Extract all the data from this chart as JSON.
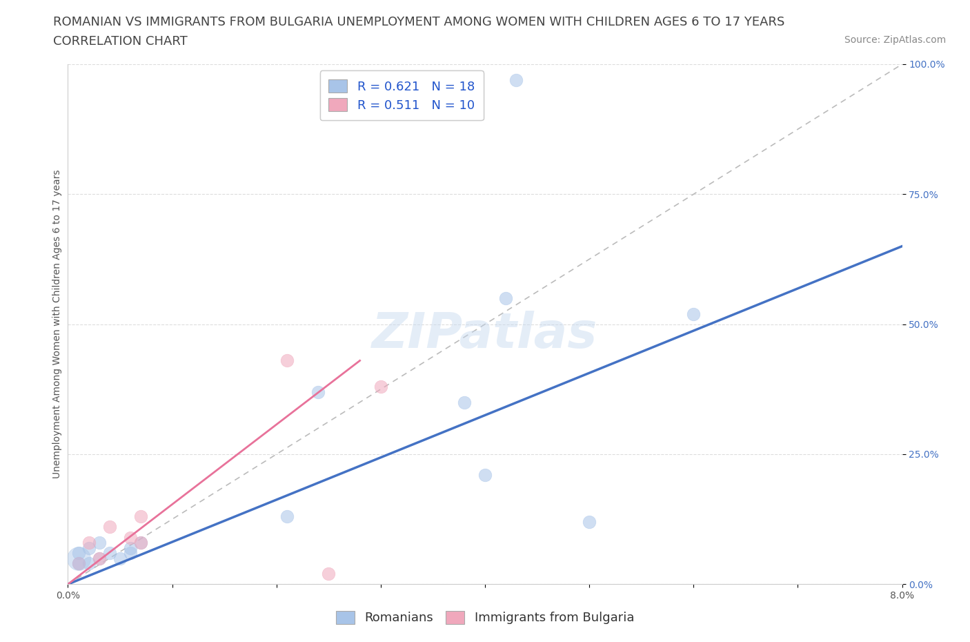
{
  "title_line1": "ROMANIAN VS IMMIGRANTS FROM BULGARIA UNEMPLOYMENT AMONG WOMEN WITH CHILDREN AGES 6 TO 17 YEARS",
  "title_line2": "CORRELATION CHART",
  "source_text": "Source: ZipAtlas.com",
  "ylabel_label": "Unemployment Among Women with Children Ages 6 to 17 years",
  "xmin": 0.0,
  "xmax": 0.08,
  "ymin": 0.0,
  "ymax": 1.0,
  "x_ticks": [
    0.0,
    0.01,
    0.02,
    0.03,
    0.04,
    0.05,
    0.06,
    0.07,
    0.08
  ],
  "x_tick_labels": [
    "0.0%",
    "",
    "",
    "",
    "",
    "",
    "",
    "",
    "8.0%"
  ],
  "y_ticks": [
    0.0,
    0.25,
    0.5,
    0.75,
    1.0
  ],
  "y_tick_labels": [
    "0.0%",
    "25.0%",
    "50.0%",
    "75.0%",
    "100.0%"
  ],
  "romanian_color": "#a8c4e8",
  "bulgarian_color": "#f0a8bc",
  "romanian_scatter_x": [
    0.001,
    0.001,
    0.002,
    0.002,
    0.003,
    0.003,
    0.004,
    0.005,
    0.006,
    0.006,
    0.007,
    0.021,
    0.024,
    0.038,
    0.04,
    0.042,
    0.05,
    0.06
  ],
  "romanian_scatter_y": [
    0.04,
    0.06,
    0.04,
    0.07,
    0.05,
    0.08,
    0.06,
    0.05,
    0.06,
    0.07,
    0.08,
    0.13,
    0.37,
    0.35,
    0.21,
    0.55,
    0.12,
    0.52
  ],
  "romanian_big_x": [
    0.001
  ],
  "romanian_big_y": [
    0.05
  ],
  "bulgarian_scatter_x": [
    0.001,
    0.002,
    0.003,
    0.004,
    0.006,
    0.007,
    0.007,
    0.021,
    0.025,
    0.03
  ],
  "bulgarian_scatter_y": [
    0.04,
    0.08,
    0.05,
    0.11,
    0.09,
    0.08,
    0.13,
    0.43,
    0.02,
    0.38
  ],
  "romanian_R": 0.621,
  "romanian_N": 18,
  "bulgarian_R": 0.511,
  "bulgarian_N": 10,
  "rom_trend_x0": 0.0,
  "rom_trend_y0": 0.0,
  "rom_trend_x1": 0.08,
  "rom_trend_y1": 0.65,
  "bulg_trend_x0": 0.0,
  "bulg_trend_y0": 0.0,
  "bulg_trend_x1": 0.028,
  "bulg_trend_y1": 0.43,
  "trendline_blue": "#4472c4",
  "trendline_pink": "#e8729a",
  "trendline_dashed_color": "#bbbbbb",
  "watermark_text": "ZIPatlas",
  "scatter_size": 180,
  "scatter_size_big": 600,
  "scatter_alpha": 0.55,
  "legend_R_color": "#2255cc",
  "grid_color": "#dddddd",
  "title_fontsize": 13,
  "subtitle_fontsize": 13,
  "source_fontsize": 10,
  "ylabel_fontsize": 10,
  "tick_fontsize": 10,
  "legend_fontsize": 13
}
